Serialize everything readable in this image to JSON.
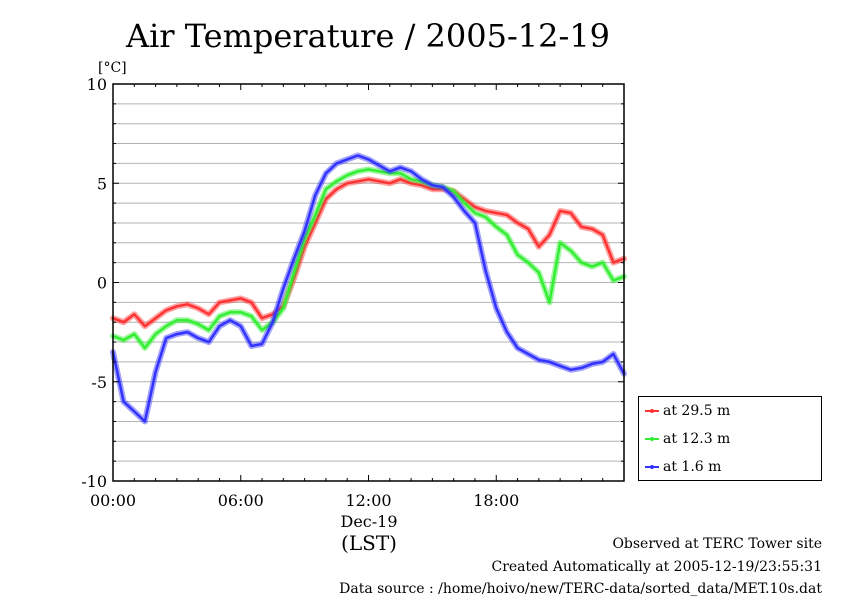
{
  "chart_data": {
    "type": "line",
    "title": "Air Temperature / 2005-12-19",
    "ylabel": "[°C]",
    "xlabel": "(LST)",
    "date_label": "Dec-19",
    "ylim": [
      -10,
      10
    ],
    "xlim": [
      0,
      24
    ],
    "yticks": [
      10,
      5,
      0,
      -5,
      -10
    ],
    "ytick_labels": [
      "10",
      "5",
      "0",
      "-5",
      "-10"
    ],
    "xticks": [
      0,
      6,
      12,
      18
    ],
    "xtick_labels": [
      "00:00",
      "06:00",
      "12:00",
      "18:00"
    ],
    "grid": true,
    "legend_position": "bottom-right, outside plot",
    "x": [
      0,
      0.5,
      1,
      1.5,
      2,
      2.5,
      3,
      3.5,
      4,
      4.5,
      5,
      5.5,
      6,
      6.5,
      7,
      7.5,
      8,
      8.5,
      9,
      9.5,
      10,
      10.5,
      11,
      11.5,
      12,
      12.5,
      13,
      13.5,
      14,
      14.5,
      15,
      15.5,
      16,
      16.5,
      17,
      17.5,
      18,
      18.5,
      19,
      19.5,
      20,
      20.5,
      21,
      21.5,
      22,
      22.5,
      23,
      23.5,
      24
    ],
    "series": [
      {
        "name": "at 29.5 m",
        "color": "#ff3333",
        "values": [
          -1.8,
          -2.0,
          -1.6,
          -2.2,
          -1.8,
          -1.4,
          -1.2,
          -1.1,
          -1.3,
          -1.6,
          -1.0,
          -0.9,
          -0.8,
          -1.0,
          -1.8,
          -1.6,
          -1.2,
          0.2,
          1.8,
          3.0,
          4.2,
          4.7,
          5.0,
          5.1,
          5.2,
          5.1,
          5.0,
          5.2,
          5.0,
          4.9,
          4.7,
          4.7,
          4.6,
          4.2,
          3.8,
          3.6,
          3.5,
          3.4,
          3.0,
          2.7,
          1.8,
          2.4,
          3.6,
          3.5,
          2.8,
          2.7,
          2.4,
          1.0,
          1.2
        ]
      },
      {
        "name": "at 12.3 m",
        "color": "#33ee33",
        "values": [
          -2.7,
          -2.9,
          -2.6,
          -3.3,
          -2.6,
          -2.2,
          -1.9,
          -1.9,
          -2.1,
          -2.4,
          -1.7,
          -1.5,
          -1.5,
          -1.7,
          -2.4,
          -2.0,
          -1.3,
          0.5,
          2.2,
          3.4,
          4.7,
          5.1,
          5.4,
          5.6,
          5.7,
          5.6,
          5.5,
          5.5,
          5.2,
          5.1,
          4.9,
          4.8,
          4.6,
          4.0,
          3.5,
          3.3,
          2.8,
          2.4,
          1.4,
          1.0,
          0.5,
          -1.0,
          2.0,
          1.6,
          1.0,
          0.8,
          1.0,
          0.1,
          0.3
        ]
      },
      {
        "name": "at 1.6 m",
        "color": "#3333ff",
        "values": [
          -3.5,
          -6.0,
          -6.5,
          -7.0,
          -4.5,
          -2.8,
          -2.6,
          -2.5,
          -2.8,
          -3.0,
          -2.2,
          -1.9,
          -2.2,
          -3.2,
          -3.1,
          -2.0,
          -0.3,
          1.2,
          2.6,
          4.4,
          5.5,
          6.0,
          6.2,
          6.4,
          6.2,
          5.9,
          5.6,
          5.8,
          5.6,
          5.2,
          4.9,
          4.8,
          4.3,
          3.6,
          3.0,
          0.6,
          -1.3,
          -2.5,
          -3.3,
          -3.6,
          -3.9,
          -4.0,
          -4.2,
          -4.4,
          -4.3,
          -4.1,
          -4.0,
          -3.6,
          -4.6
        ]
      }
    ]
  },
  "footer": {
    "line1": "Observed at TERC Tower site",
    "line2": "Created Automatically at 2005-12-19/23:55:31",
    "line3": "Data source : /home/hoivo/new/TERC-data/sorted_data/MET.10s.dat"
  }
}
